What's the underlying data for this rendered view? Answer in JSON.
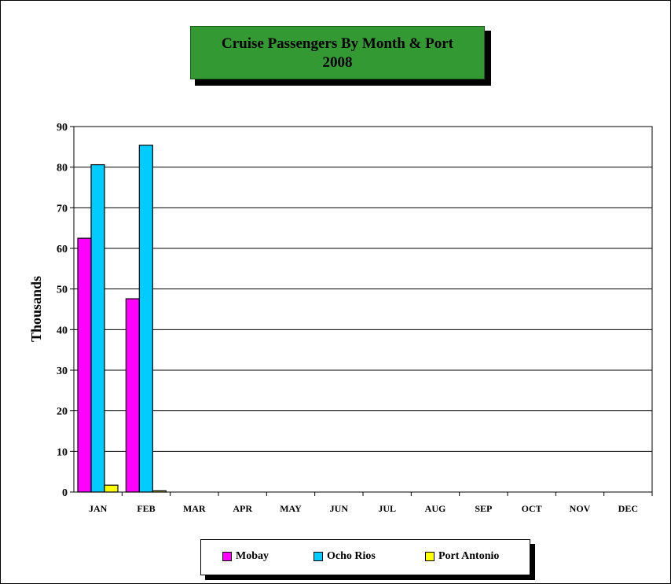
{
  "chart_data": {
    "type": "bar",
    "title": "Cruise Passengers By Month & Port",
    "subtitle": "2008",
    "xlabel": "",
    "ylabel": "Thousands",
    "ylim": [
      0,
      90
    ],
    "yticks": [
      0,
      10,
      20,
      30,
      40,
      50,
      60,
      70,
      80,
      90
    ],
    "grid": true,
    "legend_position": "bottom",
    "categories": [
      "JAN",
      "FEB",
      "MAR",
      "APR",
      "MAY",
      "JUN",
      "JUL",
      "AUG",
      "SEP",
      "OCT",
      "NOV",
      "DEC"
    ],
    "series": [
      {
        "name": "Mobay",
        "color": "#ff00ff",
        "values": [
          62.5,
          47.6,
          null,
          null,
          null,
          null,
          null,
          null,
          null,
          null,
          null,
          null
        ]
      },
      {
        "name": "Ocho Rios",
        "color": "#00ccff",
        "values": [
          80.6,
          85.4,
          null,
          null,
          null,
          null,
          null,
          null,
          null,
          null,
          null,
          null
        ]
      },
      {
        "name": "Port Antonio",
        "color": "#ffff00",
        "values": [
          1.7,
          0.3,
          null,
          null,
          null,
          null,
          null,
          null,
          null,
          null,
          null,
          null
        ]
      }
    ]
  }
}
